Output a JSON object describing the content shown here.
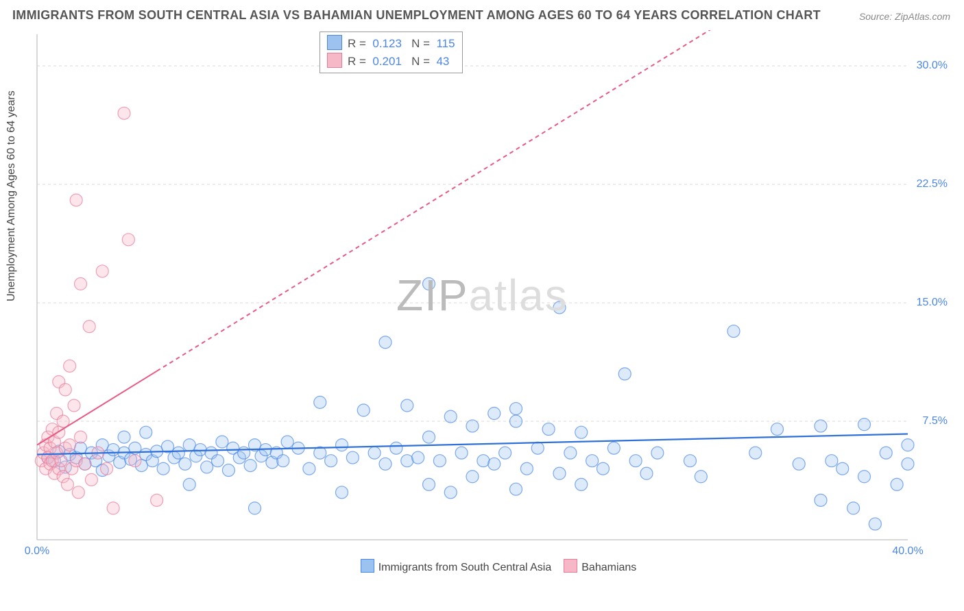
{
  "title": "IMMIGRANTS FROM SOUTH CENTRAL ASIA VS BAHAMIAN UNEMPLOYMENT AMONG AGES 60 TO 64 YEARS CORRELATION CHART",
  "source_label": "Source:",
  "source_value": "ZipAtlas.com",
  "ylabel": "Unemployment Among Ages 60 to 64 years",
  "watermark_bold": "ZIP",
  "watermark_light": "atlas",
  "chart": {
    "type": "scatter",
    "background_color": "#ffffff",
    "grid_color": "#d9d9d9",
    "grid_dash": "4 4",
    "axis_color": "#cccccc",
    "xlim": [
      0,
      40
    ],
    "ylim": [
      0,
      32
    ],
    "yticks": [
      7.5,
      15.0,
      22.5,
      30.0
    ],
    "ytick_labels": [
      "7.5%",
      "15.0%",
      "22.5%",
      "30.0%"
    ],
    "xticks": [
      0,
      40
    ],
    "xtick_labels": [
      "0.0%",
      "40.0%"
    ],
    "marker_radius": 9,
    "marker_opacity": 0.35,
    "series": [
      {
        "name": "Immigrants from South Central Asia",
        "fill": "#9cc2f0",
        "stroke": "#4a86e8",
        "R": "0.123",
        "N": "115",
        "trend": {
          "x1": 0,
          "y1": 5.4,
          "x2": 40,
          "y2": 6.7,
          "color": "#2f6fd8",
          "width": 2.2,
          "dash": ""
        },
        "points": [
          [
            0.5,
            5.2
          ],
          [
            0.8,
            5.0
          ],
          [
            1.0,
            5.6
          ],
          [
            1.3,
            4.6
          ],
          [
            1.5,
            5.4
          ],
          [
            1.8,
            5.2
          ],
          [
            2.0,
            5.8
          ],
          [
            2.2,
            4.8
          ],
          [
            2.5,
            5.5
          ],
          [
            2.7,
            5.0
          ],
          [
            3.0,
            6.0
          ],
          [
            3.0,
            4.4
          ],
          [
            3.3,
            5.3
          ],
          [
            3.5,
            5.7
          ],
          [
            3.8,
            4.9
          ],
          [
            4.0,
            5.5
          ],
          [
            4.0,
            6.5
          ],
          [
            4.3,
            5.1
          ],
          [
            4.5,
            5.8
          ],
          [
            4.8,
            4.7
          ],
          [
            5.0,
            5.4
          ],
          [
            5.0,
            6.8
          ],
          [
            5.3,
            5.0
          ],
          [
            5.5,
            5.6
          ],
          [
            5.8,
            4.5
          ],
          [
            6.0,
            5.9
          ],
          [
            6.3,
            5.2
          ],
          [
            6.5,
            5.5
          ],
          [
            6.8,
            4.8
          ],
          [
            7.0,
            6.0
          ],
          [
            7.0,
            3.5
          ],
          [
            7.3,
            5.3
          ],
          [
            7.5,
            5.7
          ],
          [
            7.8,
            4.6
          ],
          [
            8.0,
            5.5
          ],
          [
            8.3,
            5.0
          ],
          [
            8.5,
            6.2
          ],
          [
            8.8,
            4.4
          ],
          [
            9.0,
            5.8
          ],
          [
            9.3,
            5.2
          ],
          [
            9.5,
            5.5
          ],
          [
            9.8,
            4.7
          ],
          [
            10.0,
            6.0
          ],
          [
            10.0,
            2.0
          ],
          [
            10.3,
            5.3
          ],
          [
            10.5,
            5.7
          ],
          [
            10.8,
            4.9
          ],
          [
            11.0,
            5.5
          ],
          [
            11.3,
            5.0
          ],
          [
            11.5,
            6.2
          ],
          [
            12.0,
            5.8
          ],
          [
            12.5,
            4.5
          ],
          [
            13.0,
            5.5
          ],
          [
            13.0,
            8.7
          ],
          [
            13.5,
            5.0
          ],
          [
            14.0,
            6.0
          ],
          [
            14.0,
            3.0
          ],
          [
            14.5,
            5.2
          ],
          [
            15.0,
            8.2
          ],
          [
            15.5,
            5.5
          ],
          [
            16.0,
            4.8
          ],
          [
            16.0,
            12.5
          ],
          [
            16.5,
            5.8
          ],
          [
            17.0,
            5.0
          ],
          [
            17.0,
            8.5
          ],
          [
            17.5,
            5.2
          ],
          [
            18.0,
            6.5
          ],
          [
            18.0,
            16.2
          ],
          [
            18.0,
            3.5
          ],
          [
            18.5,
            5.0
          ],
          [
            19.0,
            7.8
          ],
          [
            19.0,
            3.0
          ],
          [
            19.5,
            5.5
          ],
          [
            20.0,
            7.2
          ],
          [
            20.0,
            4.0
          ],
          [
            20.5,
            5.0
          ],
          [
            21.0,
            8.0
          ],
          [
            21.0,
            4.8
          ],
          [
            21.5,
            5.5
          ],
          [
            22.0,
            7.5
          ],
          [
            22.0,
            8.3
          ],
          [
            22.0,
            3.2
          ],
          [
            22.5,
            4.5
          ],
          [
            23.0,
            5.8
          ],
          [
            23.5,
            7.0
          ],
          [
            24.0,
            4.2
          ],
          [
            24.0,
            14.7
          ],
          [
            24.5,
            5.5
          ],
          [
            25.0,
            6.8
          ],
          [
            25.0,
            3.5
          ],
          [
            25.5,
            5.0
          ],
          [
            26.0,
            4.5
          ],
          [
            26.5,
            5.8
          ],
          [
            27.0,
            10.5
          ],
          [
            27.5,
            5.0
          ],
          [
            28.0,
            4.2
          ],
          [
            28.5,
            5.5
          ],
          [
            30.0,
            5.0
          ],
          [
            30.5,
            4.0
          ],
          [
            32.0,
            13.2
          ],
          [
            33.0,
            5.5
          ],
          [
            34.0,
            7.0
          ],
          [
            35.0,
            4.8
          ],
          [
            36.0,
            7.2
          ],
          [
            36.0,
            2.5
          ],
          [
            36.5,
            5.0
          ],
          [
            37.0,
            4.5
          ],
          [
            37.5,
            2.0
          ],
          [
            38.0,
            7.3
          ],
          [
            38.0,
            4.0
          ],
          [
            38.5,
            1.0
          ],
          [
            39.0,
            5.5
          ],
          [
            39.5,
            3.5
          ],
          [
            40.0,
            4.8
          ],
          [
            40.0,
            6.0
          ]
        ]
      },
      {
        "name": "Bahamians",
        "fill": "#f6b8c6",
        "stroke": "#e87a9a",
        "R": "0.201",
        "N": "43",
        "trend": {
          "x1": 0,
          "y1": 6.0,
          "x2": 40,
          "y2": 40.0,
          "color": "#e85a85",
          "width": 2.0,
          "dash": "6 5",
          "solid_until_x": 5.5
        },
        "points": [
          [
            0.2,
            5.0
          ],
          [
            0.3,
            5.5
          ],
          [
            0.4,
            4.5
          ],
          [
            0.4,
            6.0
          ],
          [
            0.5,
            5.2
          ],
          [
            0.5,
            6.5
          ],
          [
            0.6,
            4.8
          ],
          [
            0.6,
            5.8
          ],
          [
            0.7,
            5.0
          ],
          [
            0.7,
            7.0
          ],
          [
            0.8,
            4.2
          ],
          [
            0.8,
            6.2
          ],
          [
            0.9,
            5.5
          ],
          [
            0.9,
            8.0
          ],
          [
            1.0,
            4.5
          ],
          [
            1.0,
            6.8
          ],
          [
            1.0,
            10.0
          ],
          [
            1.1,
            5.0
          ],
          [
            1.2,
            4.0
          ],
          [
            1.2,
            7.5
          ],
          [
            1.3,
            5.8
          ],
          [
            1.3,
            9.5
          ],
          [
            1.4,
            3.5
          ],
          [
            1.5,
            6.0
          ],
          [
            1.5,
            11.0
          ],
          [
            1.6,
            4.5
          ],
          [
            1.7,
            8.5
          ],
          [
            1.8,
            21.5
          ],
          [
            1.8,
            5.0
          ],
          [
            1.9,
            3.0
          ],
          [
            2.0,
            16.2
          ],
          [
            2.0,
            6.5
          ],
          [
            2.2,
            4.8
          ],
          [
            2.4,
            13.5
          ],
          [
            2.5,
            3.8
          ],
          [
            2.8,
            5.5
          ],
          [
            3.0,
            17.0
          ],
          [
            3.2,
            4.5
          ],
          [
            3.5,
            2.0
          ],
          [
            4.0,
            27.0
          ],
          [
            4.2,
            19.0
          ],
          [
            4.5,
            5.0
          ],
          [
            5.5,
            2.5
          ]
        ]
      }
    ],
    "bottom_legend": [
      {
        "label": "Immigrants from South Central Asia",
        "fill": "#9cc2f0",
        "stroke": "#4a86e8"
      },
      {
        "label": "Bahamians",
        "fill": "#f6b8c6",
        "stroke": "#e87a9a"
      }
    ]
  }
}
